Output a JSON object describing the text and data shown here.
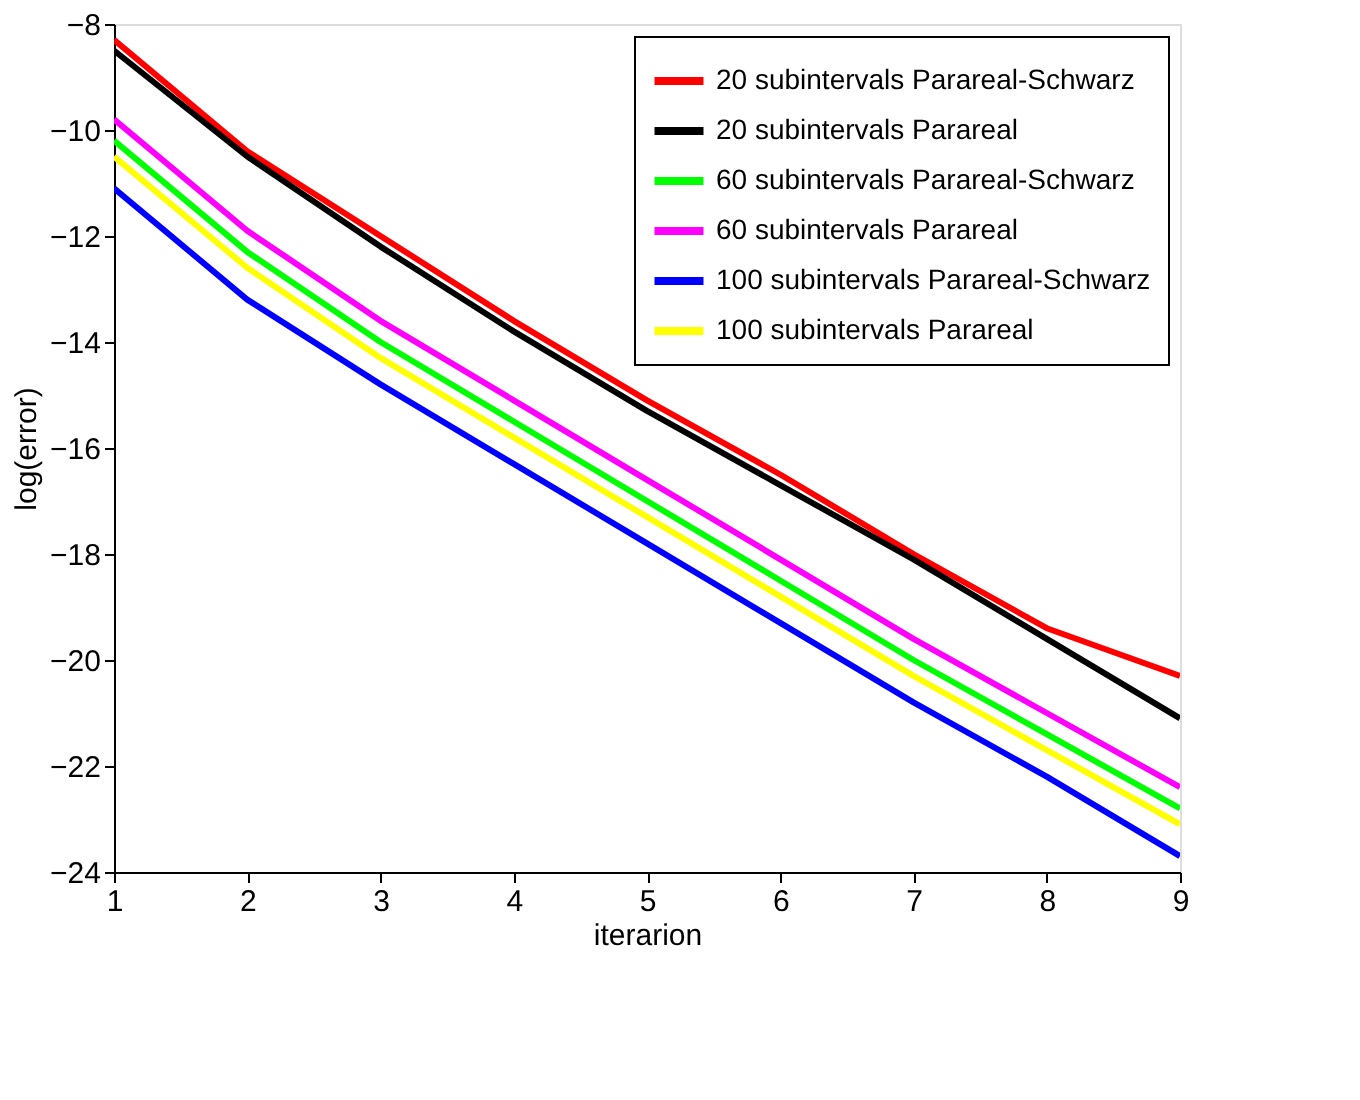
{
  "chart_data": {
    "type": "line",
    "xlabel": "iterarion",
    "ylabel": "log(error)",
    "x": [
      1,
      2,
      3,
      4,
      5,
      6,
      7,
      8,
      9
    ],
    "xlim": [
      1,
      9
    ],
    "xticks": [
      1,
      2,
      3,
      4,
      5,
      6,
      7,
      8,
      9
    ],
    "ylim": [
      -24,
      -8
    ],
    "yticks": [
      -24,
      -22,
      -20,
      -18,
      -16,
      -14,
      -12,
      -10,
      -8
    ],
    "grid": false,
    "legend": "top right",
    "marker": "none",
    "line_style": "solid",
    "series": [
      {
        "name": "20 subintervals Parareal-Schwarz",
        "color": "#ff0000",
        "values": [
          -8.3,
          -10.4,
          -12.0,
          -13.6,
          -15.1,
          -16.5,
          -18.0,
          -19.4,
          -20.3
        ]
      },
      {
        "name": "20 subintervals Parareal",
        "color": "#000000",
        "values": [
          -8.5,
          -10.5,
          -12.2,
          -13.8,
          -15.3,
          -16.7,
          -18.1,
          -19.6,
          -21.1
        ]
      },
      {
        "name": "60 subintervals Parareal-Schwarz",
        "color": "#00ff00",
        "values": [
          -10.2,
          -12.3,
          -14.0,
          -15.5,
          -17.0,
          -18.5,
          -20.0,
          -21.4,
          -22.8
        ]
      },
      {
        "name": "60 subintervals Parareal",
        "color": "#ff00ff",
        "values": [
          -9.8,
          -11.9,
          -13.6,
          -15.1,
          -16.6,
          -18.1,
          -19.6,
          -21.0,
          -22.4
        ]
      },
      {
        "name": "100 subintervals Parareal-Schwarz",
        "color": "#0000ff",
        "values": [
          -11.1,
          -13.2,
          -14.8,
          -16.3,
          -17.8,
          -19.3,
          -20.8,
          -22.2,
          -23.7
        ]
      },
      {
        "name": "100 subintervals Parareal",
        "color": "#ffff00",
        "values": [
          -10.5,
          -12.6,
          -14.3,
          -15.8,
          -17.3,
          -18.8,
          -20.3,
          -21.7,
          -23.1
        ]
      }
    ]
  }
}
